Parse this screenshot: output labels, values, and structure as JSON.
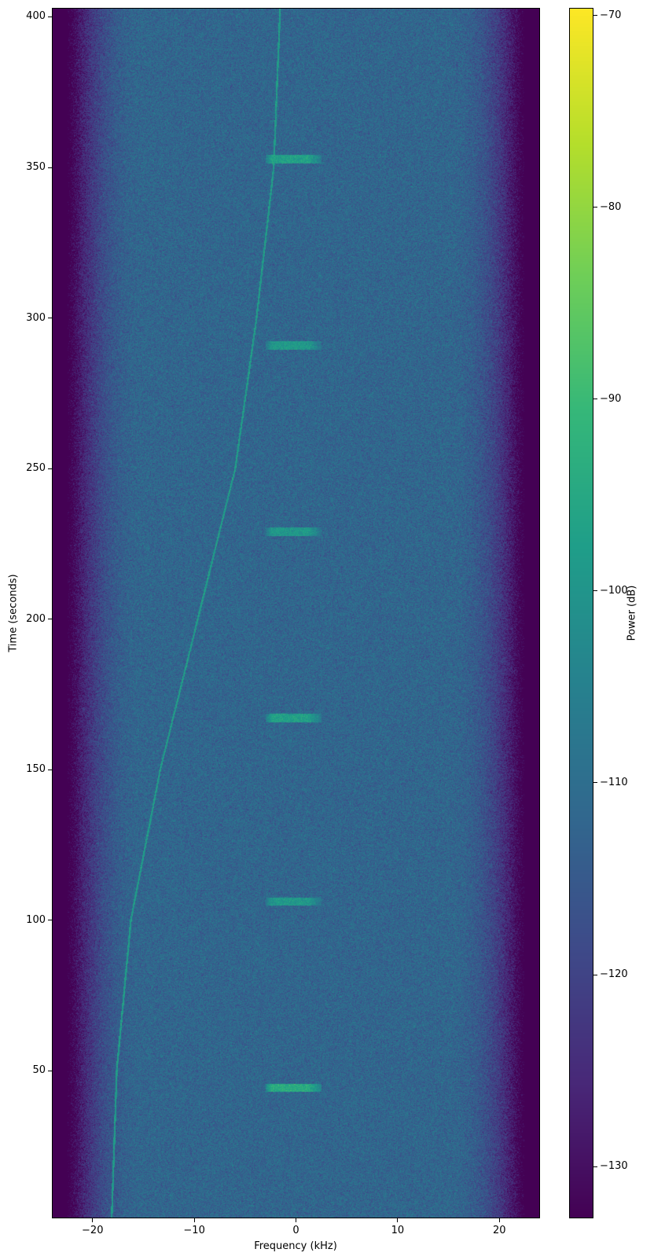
{
  "chart_data": {
    "type": "heatmap",
    "subtype": "spectrogram",
    "colormap": "viridis",
    "xlabel": "Frequency (kHz)",
    "ylabel": "Time (seconds)",
    "colorbar_label": "Power (dB)",
    "xlim": [
      -24,
      24
    ],
    "ylim": [
      1,
      403
    ],
    "clim": [
      -132.7,
      -69.6
    ],
    "xticks": [
      -20,
      -10,
      0,
      10,
      20
    ],
    "xtick_labels": [
      "−20",
      "−10",
      "0",
      "10",
      "20"
    ],
    "yticks": [
      50,
      100,
      150,
      200,
      250,
      300,
      350,
      400
    ],
    "ytick_labels": [
      "50",
      "100",
      "150",
      "200",
      "250",
      "300",
      "350",
      "400"
    ],
    "cticks": [
      -70,
      -80,
      -90,
      -100,
      -110,
      -120,
      -130
    ],
    "ctick_labels": [
      "−70",
      "−80",
      "−90",
      "−100",
      "−110",
      "−120",
      "−130"
    ],
    "noise_floor_db": -112,
    "edge_rolloff_khz": 22,
    "chirp": {
      "time_s": [
        1,
        50,
        100,
        150,
        200,
        250,
        300,
        350,
        400
      ],
      "freq_khz": [
        -18.2,
        -17.7,
        -16.3,
        -13.4,
        -9.7,
        -6.0,
        -3.9,
        -2.2,
        -1.6
      ],
      "power_db": -98
    },
    "bursts": {
      "time_s": [
        44,
        106,
        167,
        229,
        291,
        353
      ],
      "freq_range_khz": [
        -3,
        2.5
      ],
      "power_db": [
        -94,
        -99,
        -97,
        -99,
        -99,
        -97
      ]
    }
  }
}
